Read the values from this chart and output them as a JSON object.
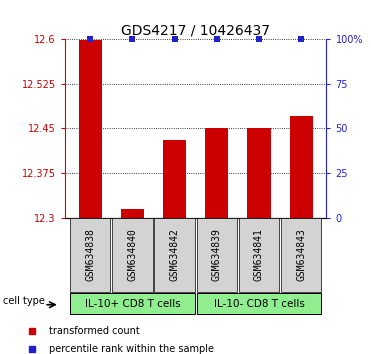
{
  "title": "GDS4217 / 10426437",
  "samples": [
    "GSM634838",
    "GSM634840",
    "GSM634842",
    "GSM634839",
    "GSM634841",
    "GSM634843"
  ],
  "red_values": [
    12.598,
    12.315,
    12.43,
    12.45,
    12.45,
    12.47
  ],
  "blue_values": [
    100,
    100,
    100,
    100,
    100,
    100
  ],
  "blue_visible": [
    true,
    true,
    true,
    true,
    true,
    true
  ],
  "ylim_left": [
    12.3,
    12.6
  ],
  "ylim_right": [
    0,
    100
  ],
  "yticks_left": [
    12.3,
    12.375,
    12.45,
    12.525,
    12.6
  ],
  "ytick_labels_left": [
    "12.3",
    "12.375",
    "12.45",
    "12.525",
    "12.6"
  ],
  "yticks_right": [
    0,
    25,
    50,
    75,
    100
  ],
  "ytick_labels_right": [
    "0",
    "25",
    "50",
    "75",
    "100%"
  ],
  "group1_label": "IL-10+ CD8 T cells",
  "group2_label": "IL-10- CD8 T cells",
  "group1_indices": [
    0,
    1,
    2
  ],
  "group2_indices": [
    3,
    4,
    5
  ],
  "cell_type_label": "cell type",
  "legend_red_label": "transformed count",
  "legend_blue_label": "percentile rank within the sample",
  "bar_color": "#cc0000",
  "blue_color": "#2222cc",
  "group_bg_color": "#90ee90",
  "sample_bg_color": "#d3d3d3",
  "bar_width": 0.55,
  "title_fontsize": 10,
  "tick_fontsize": 7,
  "legend_fontsize": 7,
  "group_fontsize": 7.5
}
